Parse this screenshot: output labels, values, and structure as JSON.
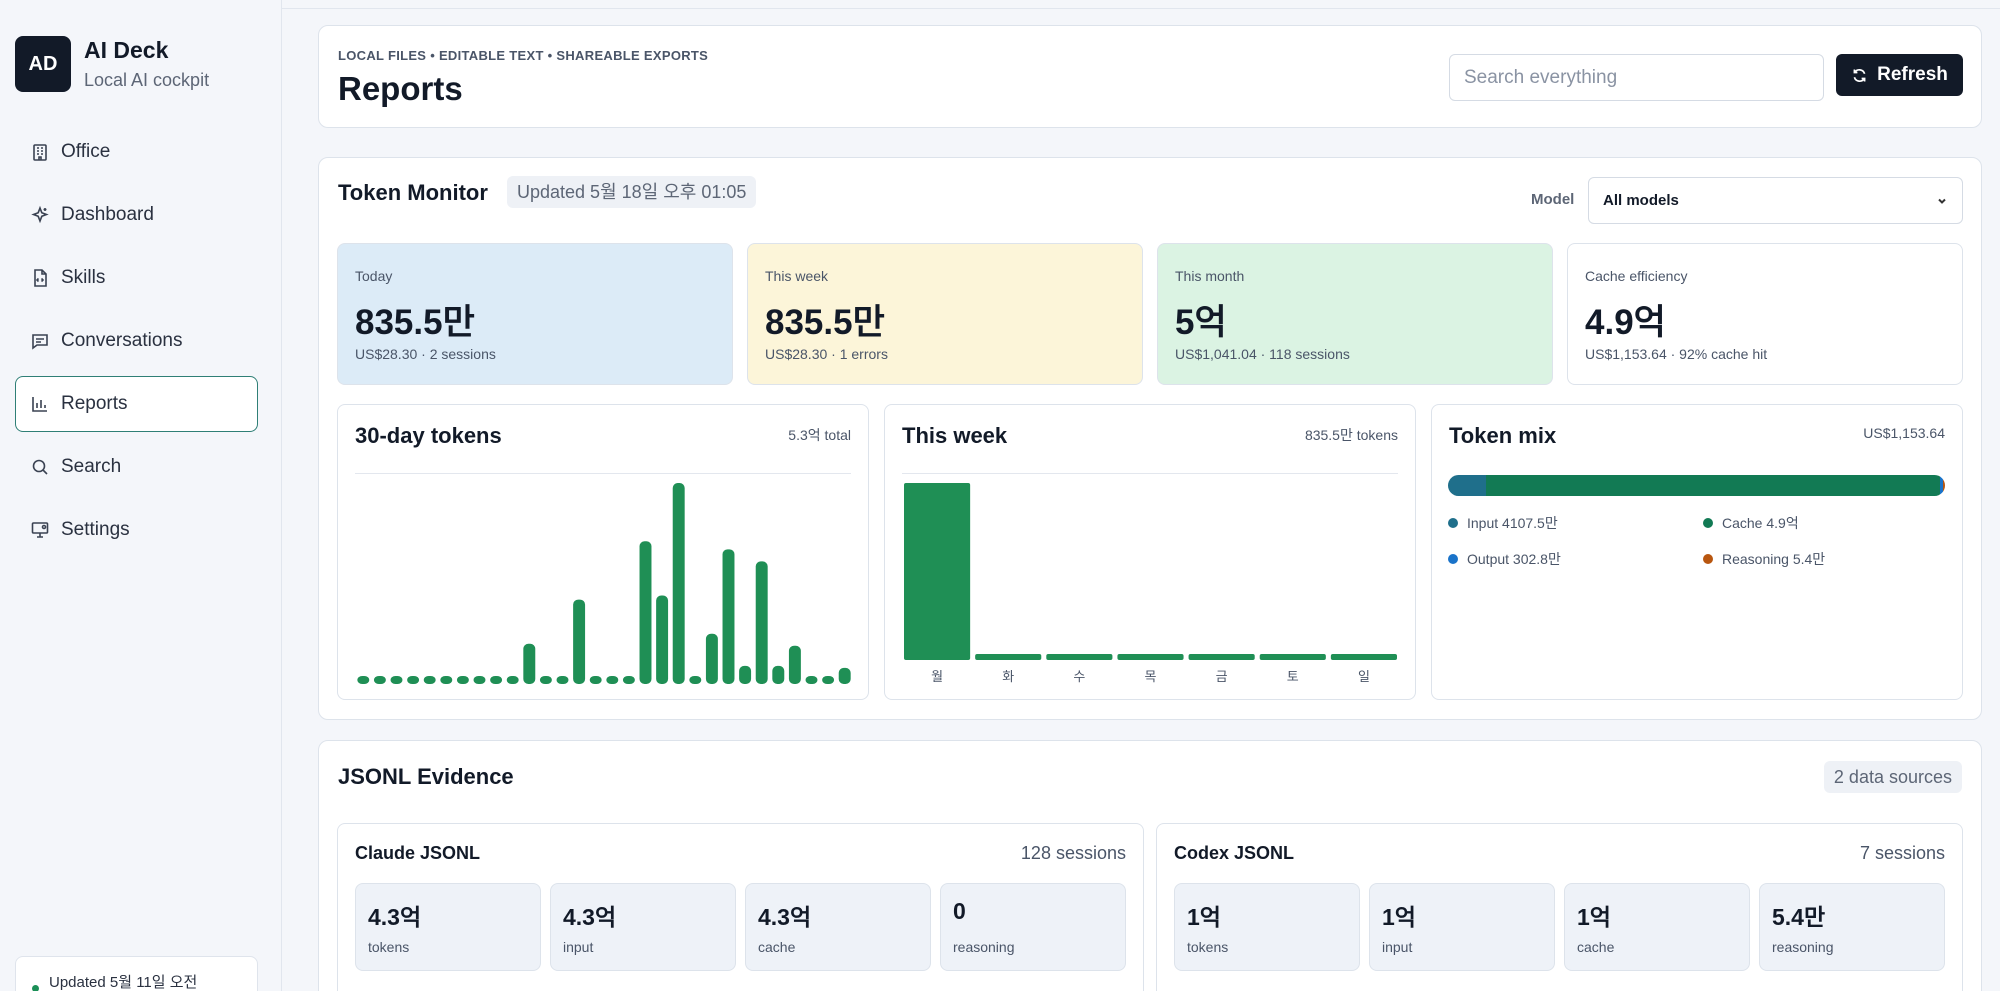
{
  "app": {
    "logo": "AD",
    "name": "AI Deck",
    "subtitle": "Local AI cockpit"
  },
  "sidebar": {
    "items": [
      {
        "label": "Office",
        "icon": "building-icon"
      },
      {
        "label": "Dashboard",
        "icon": "sparkle-icon"
      },
      {
        "label": "Skills",
        "icon": "file-code-icon"
      },
      {
        "label": "Conversations",
        "icon": "message-icon"
      },
      {
        "label": "Reports",
        "icon": "bar-chart-icon",
        "active": true
      },
      {
        "label": "Search",
        "icon": "search-icon"
      },
      {
        "label": "Settings",
        "icon": "monitor-gear-icon"
      }
    ],
    "footer": "Updated 5월 11일 오전"
  },
  "header": {
    "eyebrow": "LOCAL FILES • EDITABLE TEXT • SHAREABLE EXPORTS",
    "title": "Reports",
    "search_placeholder": "Search everything",
    "refresh_label": "Refresh"
  },
  "monitor": {
    "title": "Token Monitor",
    "updated": "Updated 5월 18일 오후 01:05",
    "model_label": "Model",
    "model_value": "All models",
    "stats": [
      {
        "label": "Today",
        "value": "835.5만",
        "sub": "US$28.30 · 2 sessions",
        "color": "#dcebf7"
      },
      {
        "label": "This week",
        "value": "835.5만",
        "sub": "US$28.30 · 1 errors",
        "color": "#fcf5d9"
      },
      {
        "label": "This month",
        "value": "5억",
        "sub": "US$1,041.04 · 118 sessions",
        "color": "#dbf3e3"
      },
      {
        "label": "Cache efficiency",
        "value": "4.9억",
        "sub": "US$1,153.64 · 92% cache hit",
        "color": "#ffffff"
      }
    ],
    "panels": {
      "tokens30": {
        "title": "30-day tokens",
        "meta": "5.3억 total"
      },
      "week": {
        "title": "This week",
        "meta": "835.5만 tokens"
      },
      "mix": {
        "title": "Token mix",
        "meta": "US$1,153.64"
      }
    },
    "mix_legend": [
      {
        "label": "Input 4107.5만",
        "color": "#1f6f8b"
      },
      {
        "label": "Cache 4.9억",
        "color": "#127a54"
      },
      {
        "label": "Output 302.8만",
        "color": "#1a73c9"
      },
      {
        "label": "Reasoning 5.4만",
        "color": "#b8560f"
      }
    ]
  },
  "chart_data": [
    {
      "type": "bar",
      "title": "30-day tokens",
      "x": [
        1,
        2,
        3,
        4,
        5,
        6,
        7,
        8,
        9,
        10,
        11,
        12,
        13,
        14,
        15,
        16,
        17,
        18,
        19,
        20,
        21,
        22,
        23,
        24,
        25,
        26,
        27,
        28,
        29,
        30
      ],
      "values": [
        4,
        4,
        4,
        4,
        4,
        4,
        4,
        4,
        4,
        4,
        20,
        4,
        4,
        42,
        4,
        4,
        4,
        71,
        44,
        100,
        4,
        25,
        67,
        9,
        61,
        9,
        19,
        4,
        4,
        8
      ],
      "color": "#1f8f55"
    },
    {
      "type": "bar",
      "title": "This week",
      "categories": [
        "월",
        "화",
        "수",
        "목",
        "금",
        "토",
        "일"
      ],
      "values": [
        835.5,
        3.5,
        3.5,
        3.5,
        3.5,
        3.5,
        3.5
      ],
      "color": "#1f8f55"
    },
    {
      "type": "bar",
      "title": "Token mix",
      "categories": [
        "Input",
        "Cache",
        "Output",
        "Reasoning"
      ],
      "values": [
        4107.5,
        49000,
        302.8,
        5.4
      ],
      "colors": [
        "#1f6f8b",
        "#127a54",
        "#1a73c9",
        "#b8560f"
      ]
    }
  ],
  "evidence": {
    "title": "JSONL Evidence",
    "badge": "2 data sources",
    "sources": [
      {
        "title": "Claude JSONL",
        "meta": "128 sessions",
        "tiles": [
          {
            "value": "4.3억",
            "label": "tokens"
          },
          {
            "value": "4.3억",
            "label": "input"
          },
          {
            "value": "4.3억",
            "label": "cache"
          },
          {
            "value": "0",
            "label": "reasoning"
          }
        ]
      },
      {
        "title": "Codex JSONL",
        "meta": "7 sessions",
        "tiles": [
          {
            "value": "1억",
            "label": "tokens"
          },
          {
            "value": "1억",
            "label": "input"
          },
          {
            "value": "1억",
            "label": "cache"
          },
          {
            "value": "5.4만",
            "label": "reasoning"
          }
        ]
      }
    ]
  }
}
